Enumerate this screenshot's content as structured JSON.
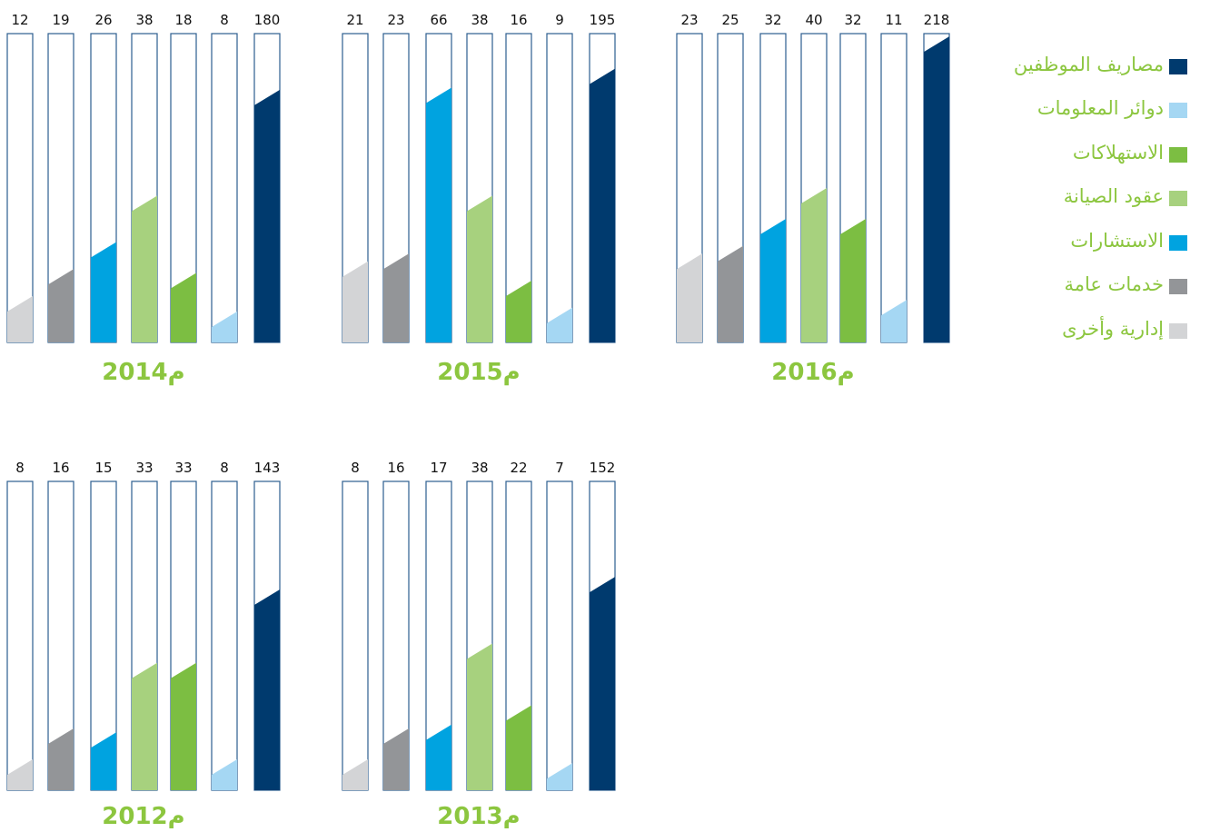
{
  "chart_data": {
    "type": "bar",
    "colors": {
      "staff": "#003a6e",
      "it": "#a5d7f3",
      "consumables": "#7cbe42",
      "maintenance": "#a7d17e",
      "consulting": "#00a3e0",
      "general": "#939598",
      "other": "#d3d4d6",
      "outline": "#2c5d8f",
      "year_label": "#8cc63f"
    },
    "series": [
      {
        "name": "إدارية وأخرى",
        "key": "other"
      },
      {
        "name": "خدمات عامة",
        "key": "general"
      },
      {
        "name": "الاستشارات",
        "key": "consulting"
      },
      {
        "name": "عقود الصيانة",
        "key": "maintenance"
      },
      {
        "name": "الاستهلاكات",
        "key": "consumables"
      },
      {
        "name": "دوائر المعلومات",
        "key": "it"
      },
      {
        "name": "مصاريف الموظفين",
        "key": "staff"
      }
    ],
    "charts": [
      {
        "year_label": "2014م",
        "values": [
          12,
          19,
          26,
          38,
          18,
          8,
          180
        ]
      },
      {
        "year_label": "2015م",
        "values": [
          21,
          23,
          66,
          38,
          16,
          9,
          195
        ]
      },
      {
        "year_label": "2016م",
        "values": [
          23,
          25,
          32,
          40,
          32,
          11,
          218
        ]
      },
      {
        "year_label": "2012م",
        "values": [
          8,
          16,
          15,
          33,
          33,
          8,
          143
        ]
      },
      {
        "year_label": "2013م",
        "values": [
          8,
          16,
          17,
          38,
          22,
          7,
          152
        ]
      }
    ]
  },
  "legend": [
    {
      "label": "مصاريف الموظفين",
      "icon": "square-swatch",
      "key": "staff"
    },
    {
      "label": "دوائر المعلومات",
      "icon": "square-swatch",
      "key": "it"
    },
    {
      "label": "الاستهلاكات",
      "icon": "square-swatch",
      "key": "consumables"
    },
    {
      "label": "عقود الصيانة",
      "icon": "square-swatch",
      "key": "maintenance"
    },
    {
      "label": "الاستشارات",
      "icon": "square-swatch",
      "key": "consulting"
    },
    {
      "label": "خدمات عامة",
      "icon": "square-swatch",
      "key": "general"
    },
    {
      "label": "إدارية وأخرى",
      "icon": "square-swatch",
      "key": "other"
    }
  ]
}
